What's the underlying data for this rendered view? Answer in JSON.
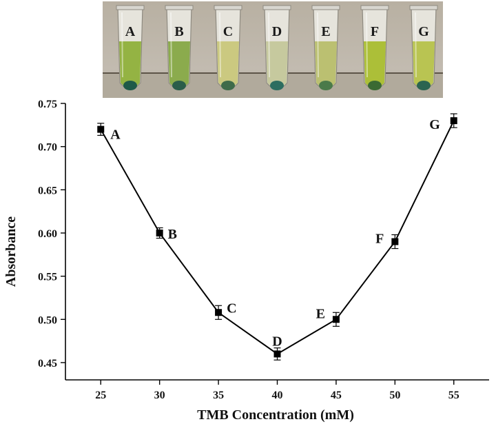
{
  "photo": {
    "tubes": [
      {
        "label": "A",
        "liquid": "#8fb03a",
        "pellet": "#1f5a48"
      },
      {
        "label": "B",
        "liquid": "#86a845",
        "pellet": "#2a5d4a"
      },
      {
        "label": "C",
        "liquid": "#c9c77a",
        "pellet": "#3f6b4a"
      },
      {
        "label": "D",
        "liquid": "#c4c79a",
        "pellet": "#2d6d60"
      },
      {
        "label": "E",
        "liquid": "#b8be6a",
        "pellet": "#4b7a4a"
      },
      {
        "label": "F",
        "liquid": "#a9bd2e",
        "pellet": "#3b6a33"
      },
      {
        "label": "G",
        "liquid": "#b6c24a",
        "pellet": "#2b6450"
      }
    ]
  },
  "chart_data": {
    "type": "line",
    "xlabel": "TMB Concentration (mM)",
    "ylabel": "Absorbance",
    "xlim": [
      22,
      58
    ],
    "ylim": [
      0.43,
      0.75
    ],
    "x_ticks": [
      25,
      30,
      35,
      40,
      45,
      50,
      55
    ],
    "y_ticks": [
      0.45,
      0.5,
      0.55,
      0.6,
      0.65,
      0.7,
      0.75
    ],
    "x_tick_labels": [
      "25",
      "30",
      "35",
      "40",
      "45",
      "50",
      "55"
    ],
    "y_tick_labels": [
      "0.45",
      "0.50",
      "0.55",
      "0.60",
      "0.65",
      "0.70",
      "0.75"
    ],
    "grid": false,
    "points": [
      {
        "label": "A",
        "x": 25,
        "y": 0.72,
        "err": 0.007
      },
      {
        "label": "B",
        "x": 30,
        "y": 0.6,
        "err": 0.006
      },
      {
        "label": "C",
        "x": 35,
        "y": 0.508,
        "err": 0.008
      },
      {
        "label": "D",
        "x": 40,
        "y": 0.46,
        "err": 0.007
      },
      {
        "label": "E",
        "x": 45,
        "y": 0.5,
        "err": 0.008
      },
      {
        "label": "F",
        "x": 50,
        "y": 0.59,
        "err": 0.008
      },
      {
        "label": "G",
        "x": 55,
        "y": 0.73,
        "err": 0.008
      }
    ],
    "color": "#000000"
  }
}
